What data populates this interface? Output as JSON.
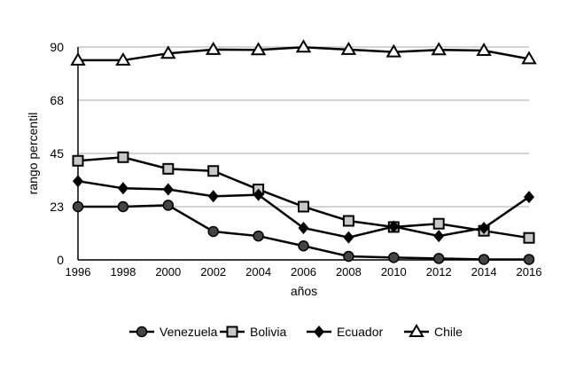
{
  "chart_data": {
    "type": "line",
    "title": "",
    "xlabel": "años",
    "ylabel": "rango percentil",
    "ylim": [
      0,
      90
    ],
    "yticks": [
      "0",
      "23",
      "45",
      "68",
      "90"
    ],
    "ytick_values": [
      0,
      22.5,
      45,
      67.5,
      90
    ],
    "grid": true,
    "legend_position": "bottom",
    "x": [
      "1996",
      "1998",
      "2000",
      "2002",
      "2004",
      "2006",
      "2008",
      "2010",
      "2012",
      "2014",
      "2016"
    ],
    "series": [
      {
        "name": "Venezuela",
        "marker": "circle",
        "values": [
          22.5,
          22.5,
          23.1,
          12.0,
          10.1,
          5.9,
          1.5,
          1.0,
          0.6,
          0.2,
          0.2
        ]
      },
      {
        "name": "Bolivia",
        "marker": "square",
        "values": [
          41.9,
          43.4,
          38.5,
          37.6,
          29.8,
          22.5,
          16.5,
          13.9,
          15.3,
          12.3,
          9.3
        ]
      },
      {
        "name": "Ecuador",
        "marker": "diamond",
        "values": [
          33.3,
          30.3,
          29.8,
          26.9,
          27.5,
          13.5,
          9.5,
          14.1,
          10.1,
          13.5,
          26.6
        ]
      },
      {
        "name": "Chile",
        "marker": "triangle",
        "values": [
          84.4,
          84.4,
          87.3,
          88.9,
          88.8,
          89.9,
          88.9,
          87.9,
          88.8,
          88.5,
          85.0
        ]
      }
    ],
    "colors": {
      "circle_fill": "#444444",
      "square_fill": "#c8c8c8",
      "grid": "#bbbbbb"
    }
  }
}
